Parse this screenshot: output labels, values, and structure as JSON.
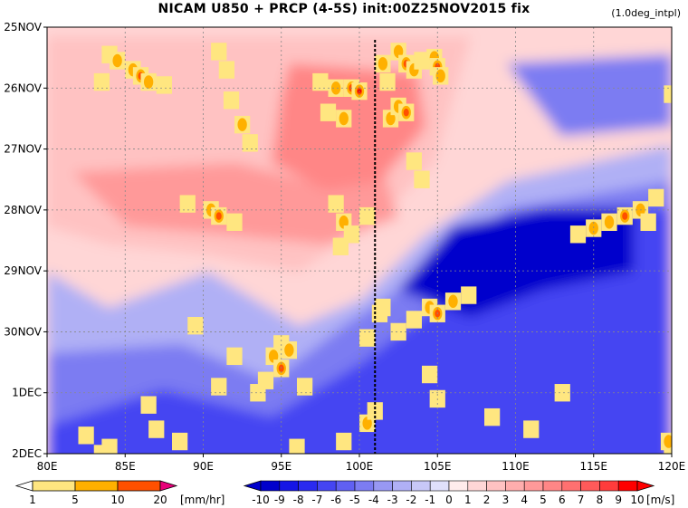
{
  "header": {
    "title": "NICAM   U850 + PRCP (4-5S) init:00Z25NOV2015 fix",
    "subtitle": "(1.0deg_intpl)"
  },
  "chart_data": {
    "type": "heatmap",
    "title": "NICAM   U850 + PRCP (4-5S) init:00Z25NOV2015 fix",
    "subtitle": "(1.0deg_intpl)",
    "x_ticks": [
      "80E",
      "85E",
      "90E",
      "95E",
      "100E",
      "105E",
      "110E",
      "115E",
      "120E"
    ],
    "x_values": [
      80,
      85,
      90,
      95,
      100,
      105,
      110,
      115,
      120
    ],
    "xlim": [
      80,
      120
    ],
    "y_ticks": [
      "25NOV",
      "26NOV",
      "27NOV",
      "28NOV",
      "29NOV",
      "30NOV",
      "1DEC",
      "2DEC"
    ],
    "y_values": [
      0,
      1,
      2,
      3,
      4,
      5,
      6,
      7
    ],
    "ylim": [
      0,
      7
    ],
    "reference_line_x": 101,
    "grid": true,
    "u850": {
      "units": "[m/s]",
      "levels": [
        "-10",
        "-9",
        "-8",
        "-7",
        "-6",
        "-5",
        "-4",
        "-3",
        "-2",
        "-1",
        "0",
        "1",
        "2",
        "3",
        "4",
        "5",
        "6",
        "7",
        "8",
        "9",
        "10"
      ],
      "colors": [
        "#0000cc",
        "#1515e6",
        "#2a2af0",
        "#4545f2",
        "#6060f2",
        "#7c7cf2",
        "#9898f3",
        "#b0b0f5",
        "#c8c8f8",
        "#e0e0fb",
        "#f4f4ff",
        "#ffecec",
        "#ffd6d6",
        "#ffc2c2",
        "#ffadad",
        "#ff9999",
        "#ff8686",
        "#ff7070",
        "#ff5a5a",
        "#ff3c3c",
        "#ff0000"
      ]
    },
    "precip": {
      "units": "[mm/hr]",
      "levels": [
        "1",
        "5",
        "10",
        "20"
      ],
      "colors": [
        "#ffffff",
        "#ffe680",
        "#ffb000",
        "#ff5000",
        "#e80000"
      ],
      "cells": [
        [
          84,
          0.45,
          1
        ],
        [
          84.5,
          0.55,
          2
        ],
        [
          85.5,
          0.7,
          2
        ],
        [
          86,
          0.8,
          3
        ],
        [
          86.5,
          0.9,
          2
        ],
        [
          87.5,
          0.95,
          1
        ],
        [
          83.5,
          0.9,
          1
        ],
        [
          91,
          0.4,
          1
        ],
        [
          91.5,
          0.7,
          1
        ],
        [
          91.8,
          1.2,
          1
        ],
        [
          92.5,
          1.6,
          2
        ],
        [
          93,
          1.9,
          1
        ],
        [
          89,
          2.9,
          1
        ],
        [
          90.5,
          3.0,
          2
        ],
        [
          91,
          3.1,
          3
        ],
        [
          92,
          3.2,
          1
        ],
        [
          97.5,
          0.9,
          1
        ],
        [
          98.5,
          1.0,
          2
        ],
        [
          99.5,
          1.0,
          3
        ],
        [
          100,
          1.05,
          4
        ],
        [
          98,
          1.4,
          1
        ],
        [
          99,
          1.5,
          2
        ],
        [
          101.5,
          0.6,
          2
        ],
        [
          101.8,
          0.9,
          1
        ],
        [
          102,
          1.5,
          2
        ],
        [
          102.5,
          0.4,
          2
        ],
        [
          103,
          0.6,
          3
        ],
        [
          103.5,
          0.7,
          2
        ],
        [
          104,
          0.55,
          1
        ],
        [
          104.8,
          0.5,
          2
        ],
        [
          105,
          0.65,
          3
        ],
        [
          105.2,
          0.8,
          2
        ],
        [
          102.5,
          1.3,
          2
        ],
        [
          103,
          1.4,
          3
        ],
        [
          98.5,
          2.9,
          1
        ],
        [
          99,
          3.2,
          2
        ],
        [
          99.5,
          3.4,
          1
        ],
        [
          100.5,
          3.1,
          1
        ],
        [
          98.8,
          3.6,
          1
        ],
        [
          103.5,
          2.2,
          1
        ],
        [
          104,
          2.5,
          1
        ],
        [
          95,
          5.2,
          1
        ],
        [
          94.5,
          5.4,
          2
        ],
        [
          95,
          5.6,
          3
        ],
        [
          95.5,
          5.3,
          2
        ],
        [
          94,
          5.8,
          1
        ],
        [
          93.5,
          6.0,
          1
        ],
        [
          89.5,
          4.9,
          1
        ],
        [
          92,
          5.4,
          1
        ],
        [
          96.5,
          5.9,
          1
        ],
        [
          100.5,
          5.1,
          1
        ],
        [
          101.3,
          4.7,
          1
        ],
        [
          91,
          5.9,
          1
        ],
        [
          86.5,
          6.2,
          1
        ],
        [
          101.5,
          4.6,
          1
        ],
        [
          103.5,
          4.8,
          1
        ],
        [
          104.5,
          4.6,
          2
        ],
        [
          105,
          4.7,
          3
        ],
        [
          106,
          4.5,
          2
        ],
        [
          107,
          4.4,
          1
        ],
        [
          102.5,
          5.0,
          1
        ],
        [
          84,
          6.9,
          1
        ],
        [
          83.5,
          7.0,
          1
        ],
        [
          82.5,
          6.7,
          1
        ],
        [
          87,
          6.6,
          1
        ],
        [
          88.5,
          6.8,
          1
        ],
        [
          99,
          6.8,
          1
        ],
        [
          100.5,
          6.5,
          2
        ],
        [
          101,
          6.3,
          1
        ],
        [
          96,
          6.9,
          1
        ],
        [
          105,
          6.1,
          1
        ],
        [
          104.5,
          5.7,
          1
        ],
        [
          108.5,
          6.4,
          1
        ],
        [
          111,
          6.6,
          1
        ],
        [
          113,
          6.0,
          1
        ],
        [
          114,
          3.4,
          1
        ],
        [
          115,
          3.3,
          2
        ],
        [
          116,
          3.2,
          2
        ],
        [
          117,
          3.1,
          3
        ],
        [
          118,
          3.0,
          2
        ],
        [
          119,
          2.8,
          1
        ],
        [
          118.5,
          3.2,
          1
        ],
        [
          120,
          7.0,
          1
        ],
        [
          119.8,
          6.8,
          2
        ],
        [
          120,
          1.1,
          1
        ]
      ]
    }
  },
  "colorbars": {
    "precip_labels": [
      "1",
      "5",
      "10",
      "20"
    ],
    "precip_units": "[mm/hr]",
    "u_labels": [
      "-10",
      "-9",
      "-8",
      "-7",
      "-6",
      "-5",
      "-4",
      "-3",
      "-2",
      "-1",
      "0",
      "1",
      "2",
      "3",
      "4",
      "5",
      "6",
      "7",
      "8",
      "9",
      "10"
    ],
    "u_units": "[m/s]"
  }
}
